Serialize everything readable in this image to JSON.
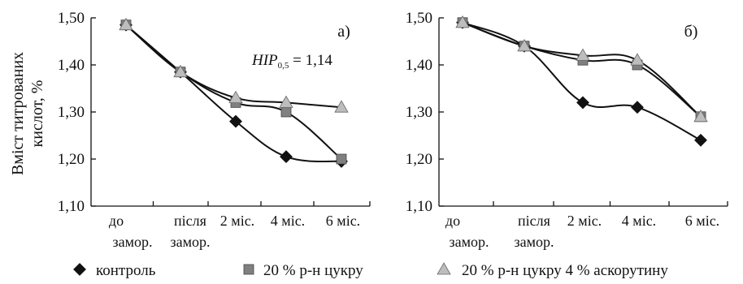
{
  "chart_data": [
    {
      "type": "line",
      "panel_label": "а)",
      "annotation": {
        "prefix": "НІР",
        "subscript": "0,5",
        "suffix": " = 1,14"
      },
      "ylabel": "Вміст титрованих кислот, %",
      "ylim": [
        1.1,
        1.5
      ],
      "yticks": [
        "1,10",
        "1,20",
        "1,30",
        "1,40",
        "1,50"
      ],
      "categories": [
        [
          "до",
          "замор."
        ],
        [
          "після",
          "замор."
        ],
        [
          "2 міс.",
          ""
        ],
        [
          "4 міс.",
          ""
        ],
        [
          "6 міс.",
          ""
        ]
      ],
      "series": [
        {
          "name": "контроль",
          "marker": "diamond",
          "color": "#111111",
          "values": [
            1.485,
            1.385,
            1.28,
            1.205,
            1.195
          ]
        },
        {
          "name": "20 % р-н цукру",
          "marker": "square",
          "color": "#808080",
          "values": [
            1.485,
            1.385,
            1.32,
            1.3,
            1.2
          ]
        },
        {
          "name": "20 % р-н цукру 4 % аскорутину",
          "marker": "triangle",
          "color": "#bdbdbd",
          "values": [
            1.485,
            1.385,
            1.33,
            1.32,
            1.31
          ]
        }
      ]
    },
    {
      "type": "line",
      "panel_label": "б)",
      "ylabel": "",
      "ylim": [
        1.1,
        1.5
      ],
      "yticks": [
        "1,10",
        "1,20",
        "1,30",
        "1,40",
        "1,50"
      ],
      "categories": [
        [
          "до",
          "замор."
        ],
        [
          "після",
          "замор."
        ],
        [
          "2 міс.",
          ""
        ],
        [
          "4 міс.",
          ""
        ],
        [
          "6 міс.",
          ""
        ]
      ],
      "series": [
        {
          "name": "контроль",
          "marker": "diamond",
          "color": "#111111",
          "values": [
            1.49,
            1.44,
            1.32,
            1.31,
            1.24
          ]
        },
        {
          "name": "20 % р-н цукру",
          "marker": "square",
          "color": "#808080",
          "values": [
            1.49,
            1.44,
            1.41,
            1.4,
            1.29
          ]
        },
        {
          "name": "20 % р-н цукру 4 % аскорутину",
          "marker": "triangle",
          "color": "#bdbdbd",
          "values": [
            1.49,
            1.44,
            1.42,
            1.41,
            1.29
          ]
        }
      ]
    }
  ],
  "legend": [
    {
      "label": "контроль",
      "marker": "diamond",
      "color": "#111111"
    },
    {
      "label": "20 % р-н цукру",
      "marker": "square",
      "color": "#808080"
    },
    {
      "label": "20 % р-н цукру 4 % аскорутину",
      "marker": "triangle",
      "color": "#bdbdbd"
    }
  ]
}
